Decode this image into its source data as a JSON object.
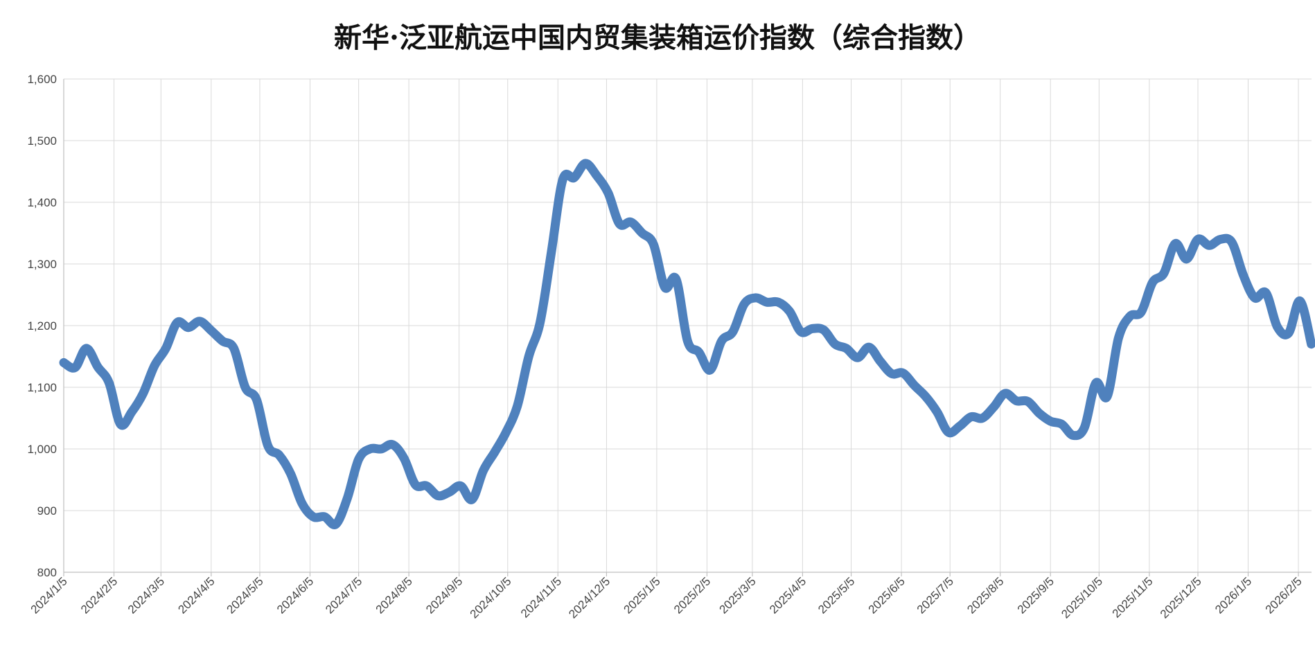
{
  "chart_data": {
    "type": "line",
    "title": "新华·泛亚航运中国内贸集装箱运价指数（综合指数）",
    "xlabel": "",
    "ylabel": "",
    "ylim": [
      800,
      1600
    ],
    "y_ticks": [
      "800",
      "900",
      "1,000",
      "1,100",
      "1,200",
      "1,300",
      "1,400",
      "1,500",
      "1,600"
    ],
    "x_ticks": [
      "2024/1/5",
      "2024/2/5",
      "2024/3/5",
      "2024/4/5",
      "2024/5/5",
      "2024/6/5",
      "2024/7/5",
      "2024/8/5",
      "2024/9/5",
      "2024/10/5",
      "2024/11/5",
      "2024/12/5",
      "2025/1/5",
      "2025/2/5",
      "2025/3/5",
      "2025/4/5",
      "2025/5/5",
      "2025/6/5",
      "2025/7/5",
      "2025/8/5",
      "2025/9/5",
      "2025/10/5",
      "2025/11/5",
      "2025/12/5",
      "2026/1/5",
      "2026/2/5"
    ],
    "grid": true,
    "legend": "none",
    "line_color": "#4f81bd",
    "series": [
      {
        "values": [
          {
            "x": "2024-01-05",
            "y": 1140
          },
          {
            "x": "2024-01-12",
            "y": 1132
          },
          {
            "x": "2024-01-19",
            "y": 1163
          },
          {
            "x": "2024-01-26",
            "y": 1133
          },
          {
            "x": "2024-02-02",
            "y": 1107
          },
          {
            "x": "2024-02-09",
            "y": 1040
          },
          {
            "x": "2024-02-16",
            "y": 1060
          },
          {
            "x": "2024-02-23",
            "y": 1090
          },
          {
            "x": "2024-03-01",
            "y": 1135
          },
          {
            "x": "2024-03-08",
            "y": 1163
          },
          {
            "x": "2024-03-15",
            "y": 1205
          },
          {
            "x": "2024-03-22",
            "y": 1197
          },
          {
            "x": "2024-03-29",
            "y": 1207
          },
          {
            "x": "2024-04-05",
            "y": 1192
          },
          {
            "x": "2024-04-12",
            "y": 1175
          },
          {
            "x": "2024-04-19",
            "y": 1163
          },
          {
            "x": "2024-04-26",
            "y": 1100
          },
          {
            "x": "2024-05-03",
            "y": 1080
          },
          {
            "x": "2024-05-10",
            "y": 1005
          },
          {
            "x": "2024-05-17",
            "y": 990
          },
          {
            "x": "2024-05-24",
            "y": 960
          },
          {
            "x": "2024-05-31",
            "y": 912
          },
          {
            "x": "2024-06-07",
            "y": 890
          },
          {
            "x": "2024-06-14",
            "y": 890
          },
          {
            "x": "2024-06-21",
            "y": 878
          },
          {
            "x": "2024-06-28",
            "y": 920
          },
          {
            "x": "2024-07-05",
            "y": 983
          },
          {
            "x": "2024-07-12",
            "y": 1000
          },
          {
            "x": "2024-07-19",
            "y": 1000
          },
          {
            "x": "2024-07-26",
            "y": 1007
          },
          {
            "x": "2024-08-02",
            "y": 985
          },
          {
            "x": "2024-08-09",
            "y": 942
          },
          {
            "x": "2024-08-16",
            "y": 940
          },
          {
            "x": "2024-08-23",
            "y": 924
          },
          {
            "x": "2024-08-30",
            "y": 930
          },
          {
            "x": "2024-09-06",
            "y": 940
          },
          {
            "x": "2024-09-13",
            "y": 918
          },
          {
            "x": "2024-09-20",
            "y": 965
          },
          {
            "x": "2024-09-27",
            "y": 995
          },
          {
            "x": "2024-10-04",
            "y": 1027
          },
          {
            "x": "2024-10-11",
            "y": 1070
          },
          {
            "x": "2024-10-18",
            "y": 1150
          },
          {
            "x": "2024-10-25",
            "y": 1205
          },
          {
            "x": "2024-11-01",
            "y": 1320
          },
          {
            "x": "2024-11-08",
            "y": 1437
          },
          {
            "x": "2024-11-15",
            "y": 1440
          },
          {
            "x": "2024-11-22",
            "y": 1463
          },
          {
            "x": "2024-11-29",
            "y": 1443
          },
          {
            "x": "2024-12-06",
            "y": 1415
          },
          {
            "x": "2024-12-13",
            "y": 1365
          },
          {
            "x": "2024-12-20",
            "y": 1368
          },
          {
            "x": "2024-12-27",
            "y": 1350
          },
          {
            "x": "2025-01-03",
            "y": 1332
          },
          {
            "x": "2025-01-10",
            "y": 1262
          },
          {
            "x": "2025-01-17",
            "y": 1275
          },
          {
            "x": "2025-01-24",
            "y": 1175
          },
          {
            "x": "2025-01-31",
            "y": 1157
          },
          {
            "x": "2025-02-07",
            "y": 1128
          },
          {
            "x": "2025-02-14",
            "y": 1175
          },
          {
            "x": "2025-02-21",
            "y": 1190
          },
          {
            "x": "2025-02-28",
            "y": 1235
          },
          {
            "x": "2025-03-07",
            "y": 1245
          },
          {
            "x": "2025-03-14",
            "y": 1238
          },
          {
            "x": "2025-03-21",
            "y": 1238
          },
          {
            "x": "2025-03-28",
            "y": 1223
          },
          {
            "x": "2025-04-04",
            "y": 1190
          },
          {
            "x": "2025-04-11",
            "y": 1195
          },
          {
            "x": "2025-04-18",
            "y": 1193
          },
          {
            "x": "2025-04-25",
            "y": 1170
          },
          {
            "x": "2025-05-02",
            "y": 1163
          },
          {
            "x": "2025-05-09",
            "y": 1148
          },
          {
            "x": "2025-05-16",
            "y": 1165
          },
          {
            "x": "2025-05-23",
            "y": 1142
          },
          {
            "x": "2025-05-30",
            "y": 1122
          },
          {
            "x": "2025-06-06",
            "y": 1123
          },
          {
            "x": "2025-06-13",
            "y": 1103
          },
          {
            "x": "2025-06-20",
            "y": 1085
          },
          {
            "x": "2025-06-27",
            "y": 1060
          },
          {
            "x": "2025-07-04",
            "y": 1027
          },
          {
            "x": "2025-07-11",
            "y": 1037
          },
          {
            "x": "2025-07-18",
            "y": 1052
          },
          {
            "x": "2025-07-25",
            "y": 1050
          },
          {
            "x": "2025-08-01",
            "y": 1068
          },
          {
            "x": "2025-08-08",
            "y": 1090
          },
          {
            "x": "2025-08-15",
            "y": 1078
          },
          {
            "x": "2025-08-22",
            "y": 1077
          },
          {
            "x": "2025-08-29",
            "y": 1058
          },
          {
            "x": "2025-09-05",
            "y": 1045
          },
          {
            "x": "2025-09-12",
            "y": 1040
          },
          {
            "x": "2025-09-19",
            "y": 1022
          },
          {
            "x": "2025-09-26",
            "y": 1035
          },
          {
            "x": "2025-10-03",
            "y": 1107
          },
          {
            "x": "2025-10-10",
            "y": 1085
          },
          {
            "x": "2025-10-17",
            "y": 1180
          },
          {
            "x": "2025-10-24",
            "y": 1215
          },
          {
            "x": "2025-10-31",
            "y": 1222
          },
          {
            "x": "2025-11-07",
            "y": 1270
          },
          {
            "x": "2025-11-14",
            "y": 1285
          },
          {
            "x": "2025-11-21",
            "y": 1333
          },
          {
            "x": "2025-11-28",
            "y": 1308
          },
          {
            "x": "2025-12-05",
            "y": 1340
          },
          {
            "x": "2025-12-12",
            "y": 1330
          },
          {
            "x": "2025-12-19",
            "y": 1340
          },
          {
            "x": "2025-12-26",
            "y": 1335
          },
          {
            "x": "2026-01-02",
            "y": 1282
          },
          {
            "x": "2026-01-09",
            "y": 1245
          },
          {
            "x": "2026-01-16",
            "y": 1253
          },
          {
            "x": "2026-01-23",
            "y": 1198
          },
          {
            "x": "2026-01-30",
            "y": 1188
          },
          {
            "x": "2026-02-06",
            "y": 1240
          },
          {
            "x": "2026-02-13",
            "y": 1170
          }
        ]
      }
    ]
  }
}
